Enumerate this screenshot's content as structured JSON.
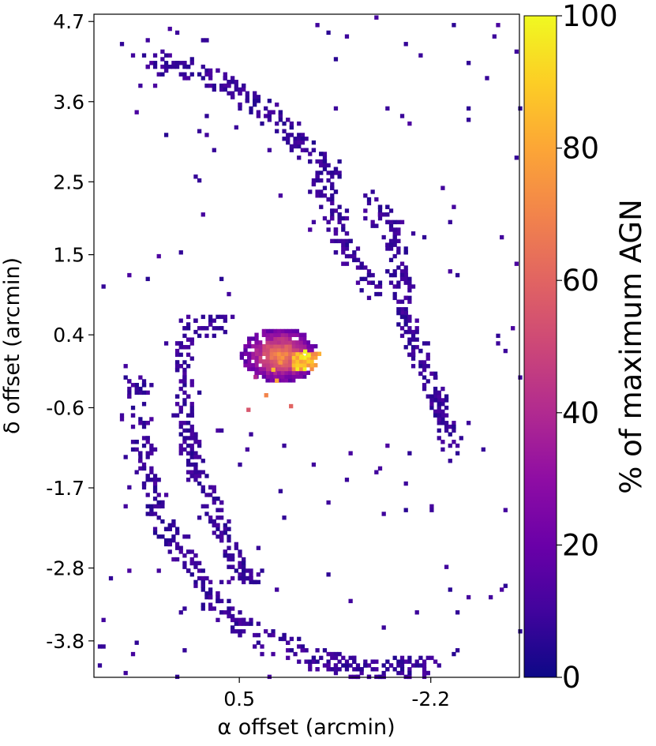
{
  "chart_data": {
    "type": "heatmap",
    "xlabel": "α offset (arcmin)",
    "ylabel": "δ offset (arcmin)",
    "colorbar_label": "% of maximum AGN",
    "xlim": [
      2.55,
      -3.45
    ],
    "ylim": [
      -4.3,
      4.8
    ],
    "x_ticks": [
      0.5,
      -2.2
    ],
    "x_tick_labels": [
      "0.5",
      "-2.2"
    ],
    "y_ticks": [
      4.7,
      3.6,
      2.5,
      1.5,
      0.4,
      -0.6,
      -1.7,
      -2.8,
      -3.8
    ],
    "y_tick_labels": [
      "4.7",
      "3.6",
      "2.5",
      "1.5",
      "0.4",
      "-0.6",
      "-1.7",
      "-2.8",
      "-3.8"
    ],
    "colorbar_ticks": [
      0,
      20,
      40,
      60,
      80,
      100
    ],
    "colorbar_tick_labels": [
      "0",
      "20",
      "40",
      "60",
      "80",
      "100"
    ],
    "colormap": "plasma",
    "clim": [
      0,
      100
    ],
    "grid": false,
    "structure": {
      "nucleus": {
        "x": -0.05,
        "y": 0.15,
        "peak_percent": 100
      },
      "arms": [
        {
          "description": "inner-west spiral arm",
          "points": [
            [
              0.7,
              0.55
            ],
            [
              1.2,
              0.6
            ],
            [
              1.3,
              0.2
            ],
            [
              1.35,
              -0.3
            ],
            [
              1.3,
              -0.8
            ],
            [
              1.2,
              -1.3
            ],
            [
              1.0,
              -1.7
            ],
            [
              0.8,
              -2.2
            ],
            [
              0.6,
              -2.7
            ],
            [
              0.3,
              -3.0
            ]
          ]
        },
        {
          "description": "outer-west spiral arm",
          "points": [
            [
              2.0,
              -0.1
            ],
            [
              1.9,
              -0.9
            ],
            [
              1.8,
              -1.5
            ],
            [
              1.6,
              -2.2
            ],
            [
              1.3,
              -2.6
            ],
            [
              1.0,
              -3.1
            ],
            [
              0.6,
              -3.5
            ],
            [
              0.0,
              -3.8
            ],
            [
              -0.8,
              -4.1
            ],
            [
              -1.5,
              -4.2
            ],
            [
              -2.2,
              -4.1
            ]
          ]
        },
        {
          "description": "east spiral arm",
          "points": [
            [
              -1.3,
              2.3
            ],
            [
              -1.6,
              1.9
            ],
            [
              -1.7,
              1.4
            ],
            [
              -1.8,
              0.9
            ],
            [
              -1.9,
              0.4
            ],
            [
              -2.1,
              -0.1
            ],
            [
              -2.3,
              -0.6
            ],
            [
              -2.5,
              -1.2
            ]
          ]
        },
        {
          "description": "north spiral arm",
          "points": [
            [
              -0.5,
              2.6
            ],
            [
              -0.8,
              2.2
            ],
            [
              -0.9,
              1.7
            ],
            [
              -1.2,
              1.3
            ],
            [
              -1.4,
              1.0
            ]
          ]
        },
        {
          "description": "northern outer arc",
          "points": [
            [
              1.8,
              4.2
            ],
            [
              1.3,
              4.1
            ],
            [
              0.6,
              3.8
            ],
            [
              0.1,
              3.5
            ],
            [
              -0.4,
              3.0
            ],
            [
              -0.9,
              2.6
            ]
          ]
        }
      ]
    }
  }
}
